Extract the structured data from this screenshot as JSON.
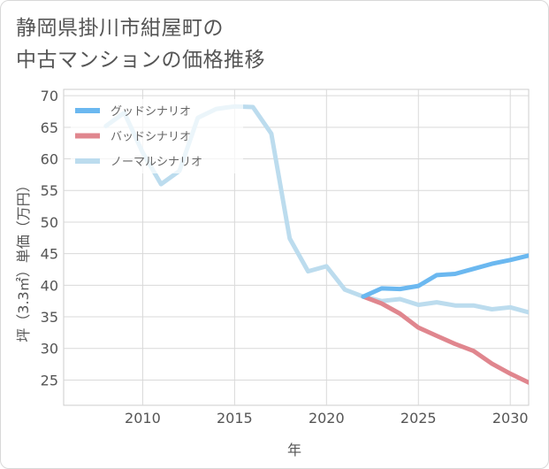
{
  "title": {
    "line1": "静岡県掛川市紺屋町の",
    "line2": "中古マンションの価格推移"
  },
  "chart_data": {
    "type": "line",
    "xlabel": "年",
    "ylabel": "坪（3.3㎡）単価（万円）",
    "xlim": [
      2005.7,
      2031
    ],
    "ylim": [
      21,
      71
    ],
    "x_ticks": [
      2010,
      2015,
      2020,
      2025,
      2030
    ],
    "y_ticks": [
      25,
      30,
      35,
      40,
      45,
      50,
      55,
      60,
      65,
      70
    ],
    "grid": true,
    "legend_position": "top-left",
    "series": [
      {
        "name": "グッドシナリオ",
        "color": "#6bb8f0",
        "x": [
          2022,
          2023,
          2024,
          2025,
          2026,
          2027,
          2028,
          2029,
          2030,
          2031
        ],
        "y": [
          38.2,
          39.5,
          39.4,
          39.9,
          41.6,
          41.8,
          42.6,
          43.4,
          44.0,
          44.7
        ]
      },
      {
        "name": "バッドシナリオ",
        "color": "#e0868e",
        "x": [
          2022,
          2023,
          2024,
          2025,
          2026,
          2027,
          2028,
          2029,
          2030,
          2031
        ],
        "y": [
          38.2,
          37.1,
          35.5,
          33.3,
          32.0,
          30.7,
          29.6,
          27.6,
          26.0,
          24.6
        ]
      },
      {
        "name": "ノーマルシナリオ",
        "color": "#bcdcee",
        "x": [
          2008,
          2009,
          2010,
          2011,
          2012,
          2013,
          2014,
          2015,
          2016,
          2017,
          2018,
          2019,
          2020,
          2021,
          2022,
          2023,
          2024,
          2025,
          2026,
          2027,
          2028,
          2029,
          2030,
          2031
        ],
        "y": [
          65.2,
          67.3,
          61.0,
          56.0,
          58.1,
          66.5,
          67.9,
          68.3,
          68.2,
          64.0,
          47.4,
          42.2,
          43.0,
          39.3,
          38.2,
          37.5,
          37.8,
          36.9,
          37.3,
          36.8,
          36.8,
          36.2,
          36.5,
          35.7
        ]
      }
    ]
  }
}
